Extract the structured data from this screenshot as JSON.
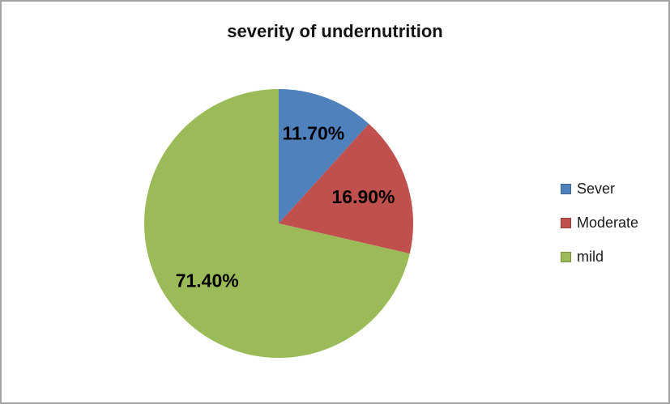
{
  "chart_data": {
    "type": "pie",
    "title": "severity of undernutrition",
    "legend_position": "right",
    "grid": false,
    "categories": [
      "Sever",
      "Moderate",
      "mild"
    ],
    "values": [
      11.7,
      16.9,
      71.4
    ],
    "slices": [
      {
        "label": "Sever",
        "value": 11.7,
        "data_label": "11.70%",
        "color": "#4F81BD"
      },
      {
        "label": "Moderate",
        "value": 16.9,
        "data_label": "16.90%",
        "color": "#C0504D"
      },
      {
        "label": "mild",
        "value": 71.4,
        "data_label": "71.40%",
        "color": "#9BBB59"
      }
    ],
    "start_angle_deg": 0,
    "direction": "clockwise"
  }
}
